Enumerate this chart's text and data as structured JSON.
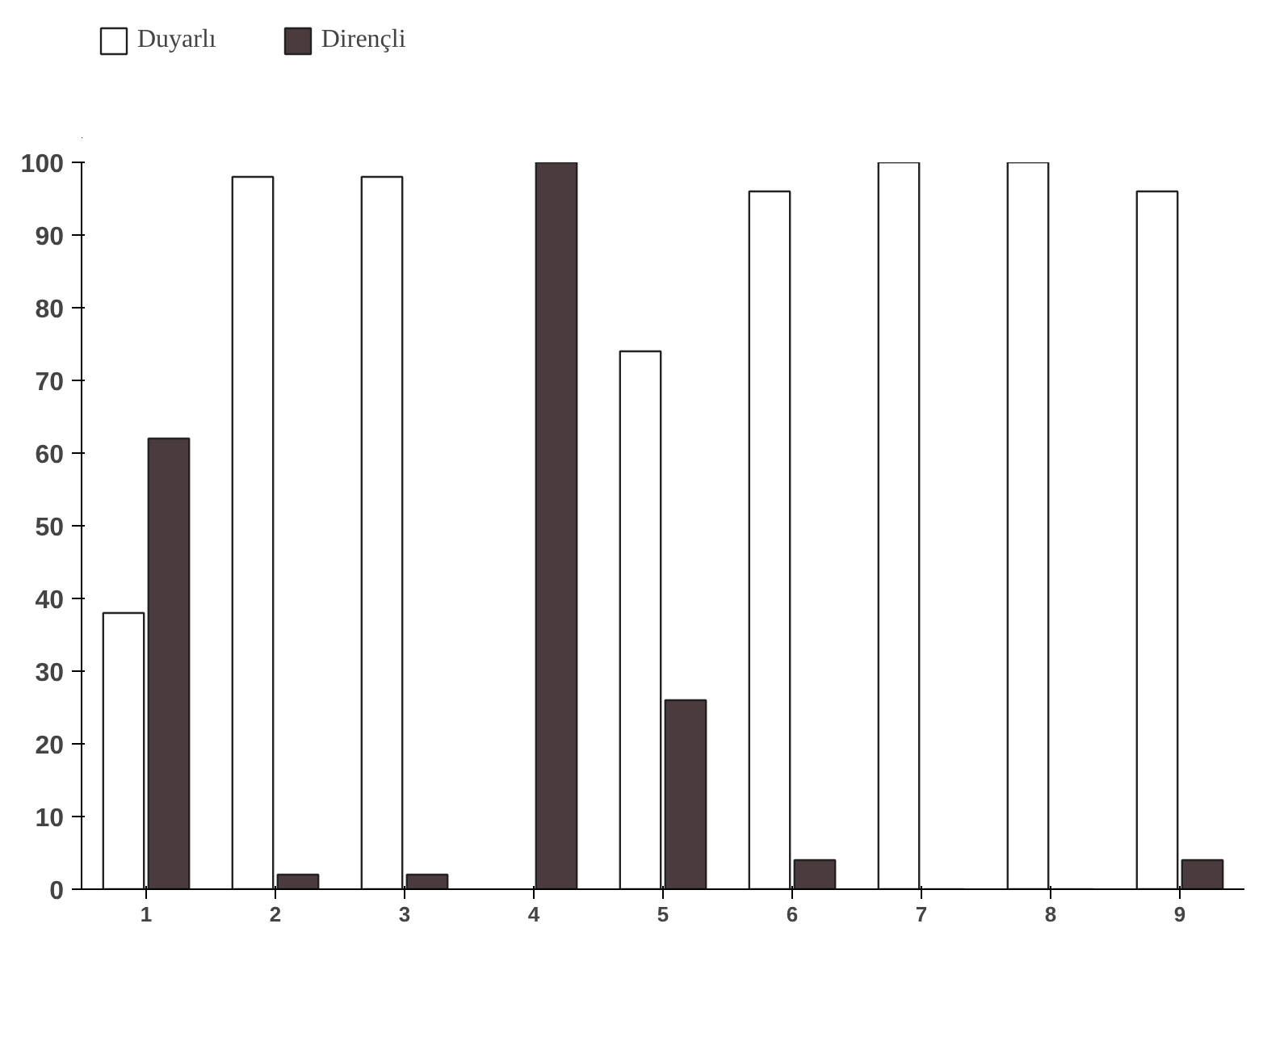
{
  "chart_data": {
    "type": "bar",
    "categories": [
      "1",
      "2",
      "3",
      "4",
      "5",
      "6",
      "7",
      "8",
      "9"
    ],
    "series": [
      {
        "name": "Duyarlı",
        "color": "#ffffff",
        "values": [
          38,
          98,
          98,
          0,
          74,
          96,
          100,
          100,
          96
        ]
      },
      {
        "name": "Dirençli",
        "color": "#4a3c3e",
        "values": [
          62,
          2,
          2,
          100,
          26,
          4,
          0,
          0,
          4
        ]
      }
    ],
    "ylim": [
      0,
      100
    ],
    "yticks": [
      0,
      10,
      20,
      30,
      40,
      50,
      60,
      70,
      80,
      90,
      100
    ],
    "grid": false,
    "legend": "top left"
  }
}
